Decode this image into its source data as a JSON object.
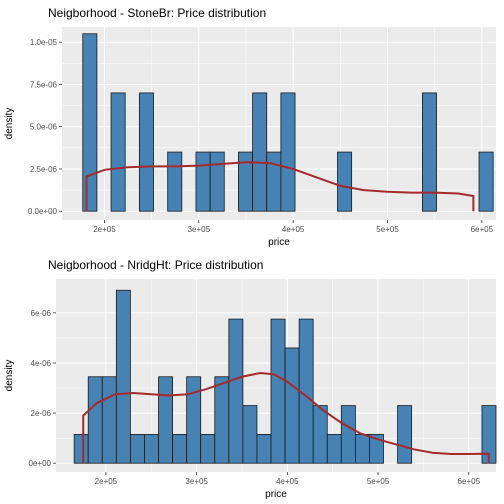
{
  "colors": {
    "panel": "#ebebeb",
    "grid_major": "#ffffff",
    "bar_fill": "#4682b4",
    "bar_stroke": "#1a1a1a",
    "density_line": "#a52a2a",
    "tick_mark": "#333333"
  },
  "chart_data": [
    {
      "type": "histogram",
      "title": "Neigborhood - StoneBr: Price distribution",
      "xlabel": "price",
      "ylabel": "density",
      "xlim": [
        155000,
        615000
      ],
      "ylim": [
        -5.2e-07,
        1.09e-05
      ],
      "x_ticks": [
        {
          "value": 200000,
          "label": "2e+05"
        },
        {
          "value": 300000,
          "label": "3e+05"
        },
        {
          "value": 400000,
          "label": "4e+05"
        },
        {
          "value": 500000,
          "label": "5e+05"
        },
        {
          "value": 600000,
          "label": "6e+05"
        }
      ],
      "y_ticks": [
        {
          "value": 0,
          "label": "0.0e+00"
        },
        {
          "value": 2.5e-06,
          "label": "2.5e-06"
        },
        {
          "value": 5e-06,
          "label": "5.0e-06"
        },
        {
          "value": 7.5e-06,
          "label": "7.5e-06"
        },
        {
          "value": 1e-05,
          "label": "1.0e-05"
        }
      ],
      "bins": [
        {
          "x0": 177000,
          "x1": 192000,
          "density": 1.05e-05
        },
        {
          "x0": 192000,
          "x1": 207000,
          "density": 0
        },
        {
          "x0": 207000,
          "x1": 222000,
          "density": 7e-06
        },
        {
          "x0": 222000,
          "x1": 237000,
          "density": 0
        },
        {
          "x0": 237000,
          "x1": 252000,
          "density": 7e-06
        },
        {
          "x0": 252000,
          "x1": 267000,
          "density": 0
        },
        {
          "x0": 267000,
          "x1": 282000,
          "density": 3.5e-06
        },
        {
          "x0": 282000,
          "x1": 297000,
          "density": 0
        },
        {
          "x0": 297000,
          "x1": 312000,
          "density": 3.5e-06
        },
        {
          "x0": 312000,
          "x1": 327000,
          "density": 3.5e-06
        },
        {
          "x0": 327000,
          "x1": 342000,
          "density": 0
        },
        {
          "x0": 342000,
          "x1": 357000,
          "density": 3.5e-06
        },
        {
          "x0": 357000,
          "x1": 372000,
          "density": 7e-06
        },
        {
          "x0": 372000,
          "x1": 387000,
          "density": 3.5e-06
        },
        {
          "x0": 387000,
          "x1": 402000,
          "density": 7e-06
        },
        {
          "x0": 402000,
          "x1": 417000,
          "density": 0
        },
        {
          "x0": 417000,
          "x1": 432000,
          "density": 0
        },
        {
          "x0": 432000,
          "x1": 447000,
          "density": 0
        },
        {
          "x0": 447000,
          "x1": 462000,
          "density": 3.5e-06
        },
        {
          "x0": 462000,
          "x1": 477000,
          "density": 0
        },
        {
          "x0": 477000,
          "x1": 492000,
          "density": 0
        },
        {
          "x0": 492000,
          "x1": 507000,
          "density": 0
        },
        {
          "x0": 507000,
          "x1": 522000,
          "density": 0
        },
        {
          "x0": 522000,
          "x1": 537000,
          "density": 0
        },
        {
          "x0": 537000,
          "x1": 552000,
          "density": 7e-06
        },
        {
          "x0": 552000,
          "x1": 567000,
          "density": 0
        },
        {
          "x0": 567000,
          "x1": 582000,
          "density": 0
        },
        {
          "x0": 582000,
          "x1": 597000,
          "density": 0
        },
        {
          "x0": 597000,
          "x1": 612000,
          "density": 3.5e-06
        }
      ],
      "density_curve": [
        [
          181000,
          0
        ],
        [
          181000,
          2.05e-06
        ],
        [
          200000,
          2.45e-06
        ],
        [
          225000,
          2.6e-06
        ],
        [
          250000,
          2.65e-06
        ],
        [
          275000,
          2.65e-06
        ],
        [
          300000,
          2.7e-06
        ],
        [
          325000,
          2.8e-06
        ],
        [
          350000,
          2.9e-06
        ],
        [
          375000,
          2.85e-06
        ],
        [
          400000,
          2.5e-06
        ],
        [
          425000,
          2e-06
        ],
        [
          450000,
          1.5e-06
        ],
        [
          475000,
          1.25e-06
        ],
        [
          500000,
          1.15e-06
        ],
        [
          525000,
          1.1e-06
        ],
        [
          550000,
          1.1e-06
        ],
        [
          575000,
          1.05e-06
        ],
        [
          591000,
          9e-07
        ],
        [
          591000,
          0
        ]
      ]
    },
    {
      "type": "histogram",
      "title": "Neigborhood - NridgHt: Price distribution",
      "xlabel": "price",
      "ylabel": "density",
      "xlim": [
        145000,
        630000
      ],
      "ylim": [
        -3.5e-07,
        7.35e-06
      ],
      "x_ticks": [
        {
          "value": 200000,
          "label": "2e+05"
        },
        {
          "value": 300000,
          "label": "3e+05"
        },
        {
          "value": 400000,
          "label": "4e+05"
        },
        {
          "value": 500000,
          "label": "5e+05"
        },
        {
          "value": 600000,
          "label": "6e+05"
        }
      ],
      "y_ticks": [
        {
          "value": 0,
          "label": "0e+00"
        },
        {
          "value": 2e-06,
          "label": "2e-06"
        },
        {
          "value": 4e-06,
          "label": "4e-06"
        },
        {
          "value": 6e-06,
          "label": "6e-06"
        }
      ],
      "bins": [
        {
          "x0": 165000,
          "x1": 180500,
          "density": 1.15e-06
        },
        {
          "x0": 180500,
          "x1": 196000,
          "density": 3.45e-06
        },
        {
          "x0": 196000,
          "x1": 211500,
          "density": 3.45e-06
        },
        {
          "x0": 211500,
          "x1": 227000,
          "density": 6.9e-06
        },
        {
          "x0": 227000,
          "x1": 242500,
          "density": 1.15e-06
        },
        {
          "x0": 242500,
          "x1": 258000,
          "density": 1.15e-06
        },
        {
          "x0": 258000,
          "x1": 273500,
          "density": 3.45e-06
        },
        {
          "x0": 273500,
          "x1": 289000,
          "density": 1.15e-06
        },
        {
          "x0": 289000,
          "x1": 304500,
          "density": 3.45e-06
        },
        {
          "x0": 304500,
          "x1": 320000,
          "density": 1.15e-06
        },
        {
          "x0": 320000,
          "x1": 335500,
          "density": 3.45e-06
        },
        {
          "x0": 335500,
          "x1": 351000,
          "density": 5.75e-06
        },
        {
          "x0": 351000,
          "x1": 366500,
          "density": 2.3e-06
        },
        {
          "x0": 366500,
          "x1": 382000,
          "density": 1.15e-06
        },
        {
          "x0": 382000,
          "x1": 397500,
          "density": 5.75e-06
        },
        {
          "x0": 397500,
          "x1": 413000,
          "density": 4.6e-06
        },
        {
          "x0": 413000,
          "x1": 428500,
          "density": 5.75e-06
        },
        {
          "x0": 428500,
          "x1": 444000,
          "density": 2.3e-06
        },
        {
          "x0": 444000,
          "x1": 459500,
          "density": 1.15e-06
        },
        {
          "x0": 459500,
          "x1": 475000,
          "density": 2.3e-06
        },
        {
          "x0": 475000,
          "x1": 490500,
          "density": 1.15e-06
        },
        {
          "x0": 490500,
          "x1": 506000,
          "density": 1.15e-06
        },
        {
          "x0": 506000,
          "x1": 521500,
          "density": 0
        },
        {
          "x0": 521500,
          "x1": 537000,
          "density": 2.3e-06
        },
        {
          "x0": 537000,
          "x1": 552500,
          "density": 0
        },
        {
          "x0": 552500,
          "x1": 568000,
          "density": 0
        },
        {
          "x0": 568000,
          "x1": 583500,
          "density": 0
        },
        {
          "x0": 583500,
          "x1": 599000,
          "density": 0
        },
        {
          "x0": 599000,
          "x1": 614500,
          "density": 0
        },
        {
          "x0": 614500,
          "x1": 630000,
          "density": 2.3e-06
        }
      ],
      "density_curve": [
        [
          175000,
          0
        ],
        [
          175000,
          1.9e-06
        ],
        [
          190000,
          2.4e-06
        ],
        [
          210000,
          2.75e-06
        ],
        [
          230000,
          2.8e-06
        ],
        [
          250000,
          2.75e-06
        ],
        [
          270000,
          2.7e-06
        ],
        [
          290000,
          2.75e-06
        ],
        [
          310000,
          2.95e-06
        ],
        [
          330000,
          3.2e-06
        ],
        [
          350000,
          3.45e-06
        ],
        [
          370000,
          3.6e-06
        ],
        [
          385000,
          3.55e-06
        ],
        [
          400000,
          3.25e-06
        ],
        [
          420000,
          2.7e-06
        ],
        [
          440000,
          2.1e-06
        ],
        [
          460000,
          1.6e-06
        ],
        [
          480000,
          1.2e-06
        ],
        [
          500000,
          9.5e-07
        ],
        [
          520000,
          7.5e-07
        ],
        [
          540000,
          5.5e-07
        ],
        [
          560000,
          4.2e-07
        ],
        [
          580000,
          3.7e-07
        ],
        [
          600000,
          3.7e-07
        ],
        [
          622000,
          3.8e-07
        ],
        [
          622000,
          0
        ]
      ]
    }
  ]
}
